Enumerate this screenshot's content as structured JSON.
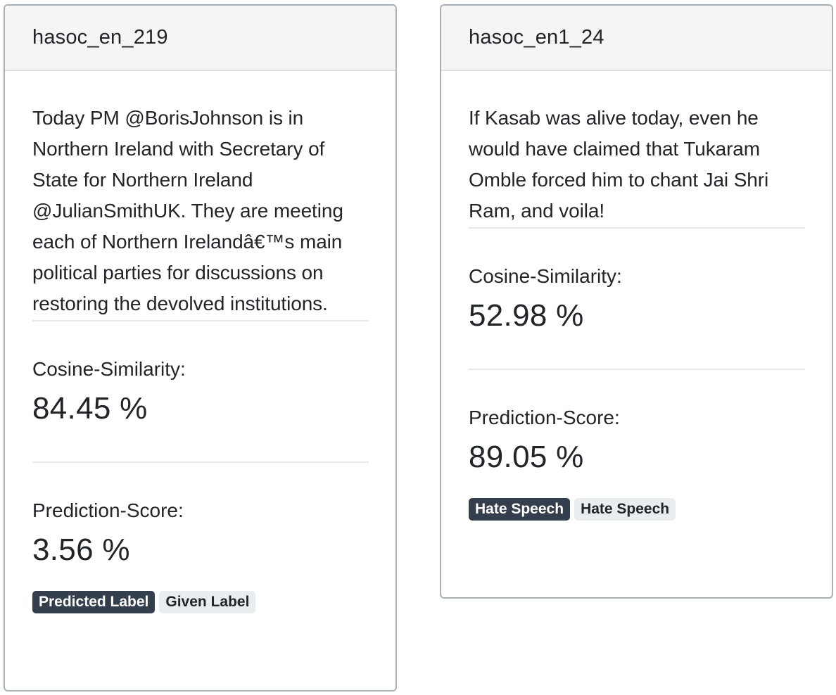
{
  "cards": [
    {
      "id": "hasoc_en_219",
      "text": "Today PM @BorisJohnson is in Northern Ireland with Secretary of State for Northern Ireland @JulianSmithUK. They are meeting each of Northern Irelandâ€™s main political parties for discussions on restoring the devolved institutions.",
      "cosine_label": "Cosine-Similarity:",
      "cosine_value": "84.45 %",
      "prediction_label": "Prediction-Score:",
      "prediction_value": "3.56 %",
      "predicted_label": "Predicted Label",
      "given_label": "Given Label"
    },
    {
      "id": "hasoc_en1_24",
      "text": "If Kasab was alive today, even he would have claimed that Tukaram Omble forced him to chant Jai Shri Ram, and voila!",
      "cosine_label": "Cosine-Similarity:",
      "cosine_value": "52.98 %",
      "prediction_label": "Prediction-Score:",
      "prediction_value": "89.05 %",
      "predicted_label": "Hate Speech",
      "given_label": "Hate Speech"
    }
  ],
  "colors": {
    "predicted_badge": "#343e4d",
    "given_badge": "#eaedf0",
    "header_bg": "#f5f5f5",
    "card_border": "#a9b1b8"
  }
}
